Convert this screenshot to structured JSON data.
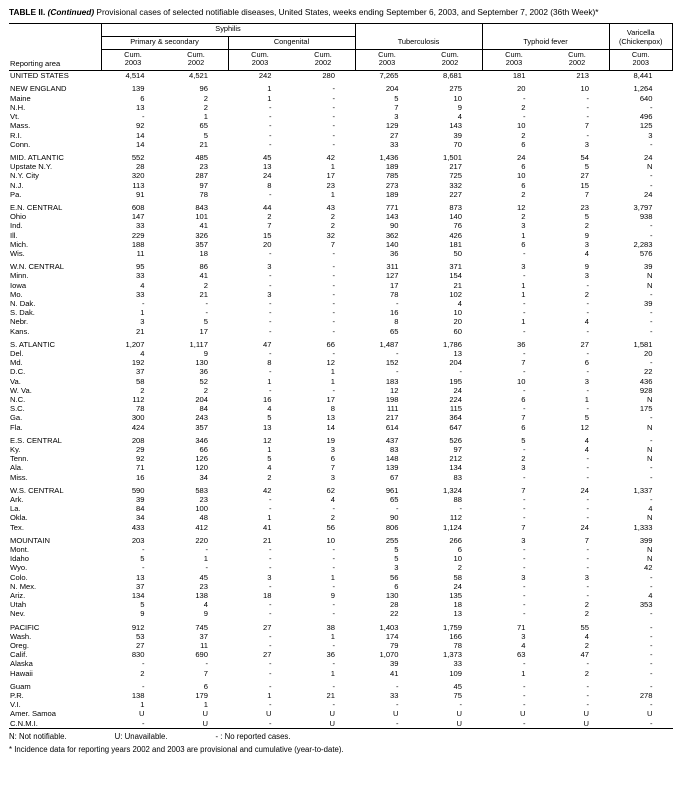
{
  "title": {
    "bold": "TABLE II.",
    "continued": " (Continued)",
    "rest": " Provisional cases of selected notifiable diseases, United States, weeks ending September 6, 2003, and September 7, 2002 (36th Week)*"
  },
  "header": {
    "reporting_area": "Reporting area",
    "syphilis": "Syphilis",
    "primary_secondary": "Primary & secondary",
    "congenital": "Congenital",
    "tuberculosis": "Tuberculosis",
    "typhoid": "Typhoid fever",
    "varicella": "Varicella\n(Chickenpox)",
    "col_headers": [
      "Cum.\n2003",
      "Cum.\n2002",
      "Cum.\n2003",
      "Cum.\n2002",
      "Cum.\n2003",
      "Cum.\n2002",
      "Cum.\n2003",
      "Cum.\n2002",
      "Cum.\n2003"
    ]
  },
  "sections": [
    {
      "rows": [
        {
          "area": "UNITED STATES",
          "values": [
            "4,514",
            "4,521",
            "242",
            "280",
            "7,265",
            "8,681",
            "181",
            "213",
            "8,441"
          ]
        }
      ]
    },
    {
      "rows": [
        {
          "area": "NEW ENGLAND",
          "values": [
            "139",
            "96",
            "1",
            "-",
            "204",
            "275",
            "20",
            "10",
            "1,264"
          ]
        },
        {
          "area": "Maine",
          "values": [
            "6",
            "2",
            "1",
            "-",
            "5",
            "10",
            "-",
            "-",
            "640"
          ]
        },
        {
          "area": "N.H.",
          "values": [
            "13",
            "2",
            "-",
            "-",
            "7",
            "9",
            "2",
            "-",
            "-"
          ]
        },
        {
          "area": "Vt.",
          "values": [
            "-",
            "1",
            "-",
            "-",
            "3",
            "4",
            "-",
            "-",
            "496"
          ]
        },
        {
          "area": "Mass.",
          "values": [
            "92",
            "65",
            "-",
            "-",
            "129",
            "143",
            "10",
            "7",
            "125"
          ]
        },
        {
          "area": "R.I.",
          "values": [
            "14",
            "5",
            "-",
            "-",
            "27",
            "39",
            "2",
            "-",
            "3"
          ]
        },
        {
          "area": "Conn.",
          "values": [
            "14",
            "21",
            "-",
            "-",
            "33",
            "70",
            "6",
            "3",
            "-"
          ]
        }
      ]
    },
    {
      "rows": [
        {
          "area": "MID. ATLANTIC",
          "values": [
            "552",
            "485",
            "45",
            "42",
            "1,436",
            "1,501",
            "24",
            "54",
            "24"
          ]
        },
        {
          "area": "Upstate N.Y.",
          "values": [
            "28",
            "23",
            "13",
            "1",
            "189",
            "217",
            "6",
            "5",
            "N"
          ]
        },
        {
          "area": "N.Y. City",
          "values": [
            "320",
            "287",
            "24",
            "17",
            "785",
            "725",
            "10",
            "27",
            "-"
          ]
        },
        {
          "area": "N.J.",
          "values": [
            "113",
            "97",
            "8",
            "23",
            "273",
            "332",
            "6",
            "15",
            "-"
          ]
        },
        {
          "area": "Pa.",
          "values": [
            "91",
            "78",
            "-",
            "1",
            "189",
            "227",
            "2",
            "7",
            "24"
          ]
        }
      ]
    },
    {
      "rows": [
        {
          "area": "E.N. CENTRAL",
          "values": [
            "608",
            "843",
            "44",
            "43",
            "771",
            "873",
            "12",
            "23",
            "3,797"
          ]
        },
        {
          "area": "Ohio",
          "values": [
            "147",
            "101",
            "2",
            "2",
            "143",
            "140",
            "2",
            "5",
            "938"
          ]
        },
        {
          "area": "Ind.",
          "values": [
            "33",
            "41",
            "7",
            "2",
            "90",
            "76",
            "3",
            "2",
            "-"
          ]
        },
        {
          "area": "Ill.",
          "values": [
            "229",
            "326",
            "15",
            "32",
            "362",
            "426",
            "1",
            "9",
            "-"
          ]
        },
        {
          "area": "Mich.",
          "values": [
            "188",
            "357",
            "20",
            "7",
            "140",
            "181",
            "6",
            "3",
            "2,283"
          ]
        },
        {
          "area": "Wis.",
          "values": [
            "11",
            "18",
            "-",
            "-",
            "36",
            "50",
            "-",
            "4",
            "576"
          ]
        }
      ]
    },
    {
      "rows": [
        {
          "area": "W.N. CENTRAL",
          "values": [
            "95",
            "86",
            "3",
            "-",
            "311",
            "371",
            "3",
            "9",
            "39"
          ]
        },
        {
          "area": "Minn.",
          "values": [
            "33",
            "41",
            "-",
            "-",
            "127",
            "154",
            "-",
            "3",
            "N"
          ]
        },
        {
          "area": "Iowa",
          "values": [
            "4",
            "2",
            "-",
            "-",
            "17",
            "21",
            "1",
            "-",
            "N"
          ]
        },
        {
          "area": "Mo.",
          "values": [
            "33",
            "21",
            "3",
            "-",
            "78",
            "102",
            "1",
            "2",
            "-"
          ]
        },
        {
          "area": "N. Dak.",
          "values": [
            "-",
            "-",
            "-",
            "-",
            "-",
            "4",
            "-",
            "-",
            "39"
          ]
        },
        {
          "area": "S. Dak.",
          "values": [
            "1",
            "-",
            "-",
            "-",
            "16",
            "10",
            "-",
            "-",
            "-"
          ]
        },
        {
          "area": "Nebr.",
          "values": [
            "3",
            "5",
            "-",
            "-",
            "8",
            "20",
            "1",
            "4",
            "-"
          ]
        },
        {
          "area": "Kans.",
          "values": [
            "21",
            "17",
            "-",
            "-",
            "65",
            "60",
            "-",
            "-",
            "-"
          ]
        }
      ]
    },
    {
      "rows": [
        {
          "area": "S. ATLANTIC",
          "values": [
            "1,207",
            "1,117",
            "47",
            "66",
            "1,487",
            "1,786",
            "36",
            "27",
            "1,581"
          ]
        },
        {
          "area": "Del.",
          "values": [
            "4",
            "9",
            "-",
            "-",
            "-",
            "13",
            "-",
            "-",
            "20"
          ]
        },
        {
          "area": "Md.",
          "values": [
            "192",
            "130",
            "8",
            "12",
            "152",
            "204",
            "7",
            "6",
            "-"
          ]
        },
        {
          "area": "D.C.",
          "values": [
            "37",
            "36",
            "-",
            "1",
            "-",
            "-",
            "-",
            "-",
            "22"
          ]
        },
        {
          "area": "Va.",
          "values": [
            "58",
            "52",
            "1",
            "1",
            "183",
            "195",
            "10",
            "3",
            "436"
          ]
        },
        {
          "area": "W. Va.",
          "values": [
            "2",
            "2",
            "-",
            "-",
            "12",
            "24",
            "-",
            "-",
            "928"
          ]
        },
        {
          "area": "N.C.",
          "values": [
            "112",
            "204",
            "16",
            "17",
            "198",
            "224",
            "6",
            "1",
            "N"
          ]
        },
        {
          "area": "S.C.",
          "values": [
            "78",
            "84",
            "4",
            "8",
            "111",
            "115",
            "-",
            "-",
            "175"
          ]
        },
        {
          "area": "Ga.",
          "values": [
            "300",
            "243",
            "5",
            "13",
            "217",
            "364",
            "7",
            "5",
            "-"
          ]
        },
        {
          "area": "Fla.",
          "values": [
            "424",
            "357",
            "13",
            "14",
            "614",
            "647",
            "6",
            "12",
            "N"
          ]
        }
      ]
    },
    {
      "rows": [
        {
          "area": "E.S. CENTRAL",
          "values": [
            "208",
            "346",
            "12",
            "19",
            "437",
            "526",
            "5",
            "4",
            "-"
          ]
        },
        {
          "area": "Ky.",
          "values": [
            "29",
            "66",
            "1",
            "3",
            "83",
            "97",
            "-",
            "4",
            "N"
          ]
        },
        {
          "area": "Tenn.",
          "values": [
            "92",
            "126",
            "5",
            "6",
            "148",
            "212",
            "2",
            "-",
            "N"
          ]
        },
        {
          "area": "Ala.",
          "values": [
            "71",
            "120",
            "4",
            "7",
            "139",
            "134",
            "3",
            "-",
            "-"
          ]
        },
        {
          "area": "Miss.",
          "values": [
            "16",
            "34",
            "2",
            "3",
            "67",
            "83",
            "-",
            "-",
            "-"
          ]
        }
      ]
    },
    {
      "rows": [
        {
          "area": "W.S. CENTRAL",
          "values": [
            "590",
            "583",
            "42",
            "62",
            "961",
            "1,324",
            "7",
            "24",
            "1,337"
          ]
        },
        {
          "area": "Ark.",
          "values": [
            "39",
            "23",
            "-",
            "4",
            "65",
            "88",
            "-",
            "-",
            "-"
          ]
        },
        {
          "area": "La.",
          "values": [
            "84",
            "100",
            "-",
            "-",
            "-",
            "-",
            "-",
            "-",
            "4"
          ]
        },
        {
          "area": "Okla.",
          "values": [
            "34",
            "48",
            "1",
            "2",
            "90",
            "112",
            "-",
            "-",
            "N"
          ]
        },
        {
          "area": "Tex.",
          "values": [
            "433",
            "412",
            "41",
            "56",
            "806",
            "1,124",
            "7",
            "24",
            "1,333"
          ]
        }
      ]
    },
    {
      "rows": [
        {
          "area": "MOUNTAIN",
          "values": [
            "203",
            "220",
            "21",
            "10",
            "255",
            "266",
            "3",
            "7",
            "399"
          ]
        },
        {
          "area": "Mont.",
          "values": [
            "-",
            "-",
            "-",
            "-",
            "5",
            "6",
            "-",
            "-",
            "N"
          ]
        },
        {
          "area": "Idaho",
          "values": [
            "5",
            "1",
            "-",
            "-",
            "5",
            "10",
            "-",
            "-",
            "N"
          ]
        },
        {
          "area": "Wyo.",
          "values": [
            "-",
            "-",
            "-",
            "-",
            "3",
            "2",
            "-",
            "-",
            "42"
          ]
        },
        {
          "area": "Colo.",
          "values": [
            "13",
            "45",
            "3",
            "1",
            "56",
            "58",
            "3",
            "3",
            "-"
          ]
        },
        {
          "area": "N. Mex.",
          "values": [
            "37",
            "23",
            "-",
            "-",
            "6",
            "24",
            "-",
            "-",
            "-"
          ]
        },
        {
          "area": "Ariz.",
          "values": [
            "134",
            "138",
            "18",
            "9",
            "130",
            "135",
            "-",
            "-",
            "4"
          ]
        },
        {
          "area": "Utah",
          "values": [
            "5",
            "4",
            "-",
            "-",
            "28",
            "18",
            "-",
            "2",
            "353"
          ]
        },
        {
          "area": "Nev.",
          "values": [
            "9",
            "9",
            "-",
            "-",
            "22",
            "13",
            "-",
            "2",
            "-"
          ]
        }
      ]
    },
    {
      "rows": [
        {
          "area": "PACIFIC",
          "values": [
            "912",
            "745",
            "27",
            "38",
            "1,403",
            "1,759",
            "71",
            "55",
            "-"
          ]
        },
        {
          "area": "Wash.",
          "values": [
            "53",
            "37",
            "-",
            "1",
            "174",
            "166",
            "3",
            "4",
            "-"
          ]
        },
        {
          "area": "Oreg.",
          "values": [
            "27",
            "11",
            "-",
            "-",
            "79",
            "78",
            "4",
            "2",
            "-"
          ]
        },
        {
          "area": "Calif.",
          "values": [
            "830",
            "690",
            "27",
            "36",
            "1,070",
            "1,373",
            "63",
            "47",
            "-"
          ]
        },
        {
          "area": "Alaska",
          "values": [
            "-",
            "-",
            "-",
            "-",
            "39",
            "33",
            "-",
            "-",
            "-"
          ]
        },
        {
          "area": "Hawaii",
          "values": [
            "2",
            "7",
            "-",
            "1",
            "41",
            "109",
            "1",
            "2",
            "-"
          ]
        }
      ]
    },
    {
      "rows": [
        {
          "area": "Guam",
          "values": [
            "-",
            "6",
            "-",
            "-",
            "-",
            "45",
            "-",
            "-",
            "-"
          ]
        },
        {
          "area": "P.R.",
          "values": [
            "138",
            "179",
            "1",
            "21",
            "33",
            "75",
            "-",
            "-",
            "278"
          ]
        },
        {
          "area": "V.I.",
          "values": [
            "1",
            "1",
            "-",
            "-",
            "-",
            "-",
            "-",
            "-",
            "-"
          ]
        },
        {
          "area": "Amer. Samoa",
          "values": [
            "U",
            "U",
            "U",
            "U",
            "U",
            "U",
            "U",
            "U",
            "U"
          ]
        },
        {
          "area": "C.N.M.I.",
          "values": [
            "-",
            "U",
            "-",
            "U",
            "-",
            "U",
            "-",
            "U",
            "-"
          ]
        }
      ]
    }
  ],
  "footnotes": {
    "n": "N: Not notifiable.",
    "u": "U: Unavailable.",
    "dash": "- : No reported cases.",
    "note": "* Incidence data for reporting years 2002 and 2003 are provisional and cumulative (year-to-date)."
  }
}
